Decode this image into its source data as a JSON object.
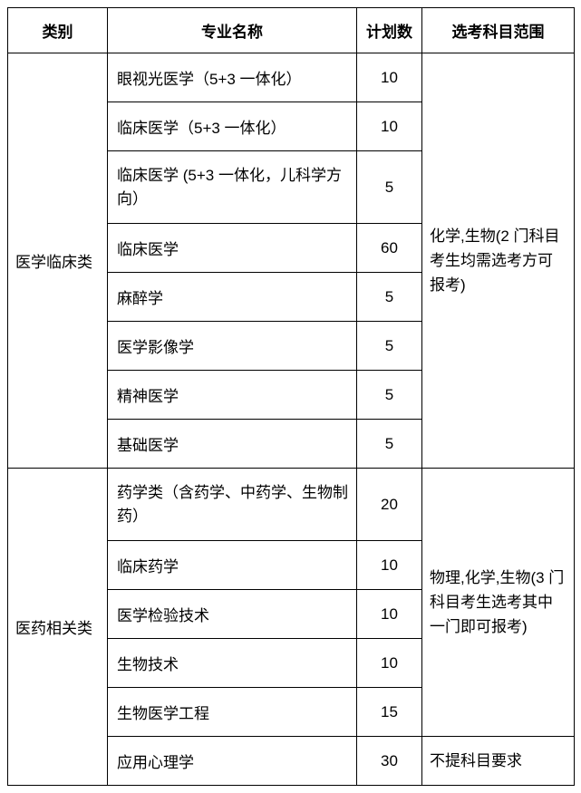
{
  "headers": {
    "category": "类别",
    "major": "专业名称",
    "count": "计划数",
    "subject": "选考科目范围"
  },
  "groups": [
    {
      "category": "医学临床类",
      "subject_requirement": "化学,生物(2 门科目考生均需选考方可报考)",
      "rows": [
        {
          "major": "眼视光医学（5+3 一体化）",
          "count": "10"
        },
        {
          "major": "临床医学（5+3 一体化）",
          "count": "10"
        },
        {
          "major": "临床医学 (5+3 一体化，儿科学方向）",
          "count": "5"
        },
        {
          "major": "临床医学",
          "count": "60"
        },
        {
          "major": "麻醉学",
          "count": "5"
        },
        {
          "major": "医学影像学",
          "count": "5"
        },
        {
          "major": "精神医学",
          "count": "5"
        },
        {
          "major": "基础医学",
          "count": "5"
        }
      ]
    },
    {
      "category": "医药相关类",
      "subject_requirement": "物理,化学,生物(3 门科目考生选考其中一门即可报考)",
      "rows": [
        {
          "major": "药学类（含药学、中药学、生物制药）",
          "count": "20"
        },
        {
          "major": "临床药学",
          "count": "10"
        },
        {
          "major": "医学检验技术",
          "count": "10"
        },
        {
          "major": "生物技术",
          "count": "10"
        },
        {
          "major": "生物医学工程",
          "count": "15"
        }
      ],
      "extra_rows": [
        {
          "major": "应用心理学",
          "count": "30",
          "subject": "不提科目要求"
        }
      ]
    }
  ]
}
